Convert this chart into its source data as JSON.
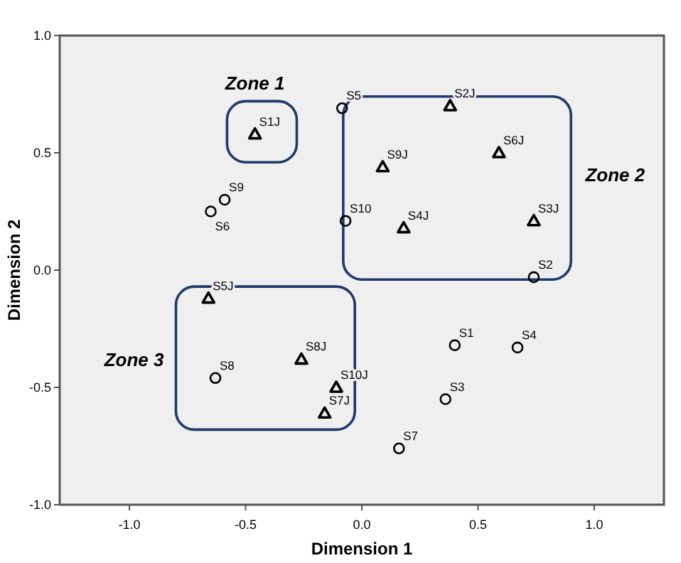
{
  "chart_data": {
    "type": "scatter",
    "xlabel": "Dimension 1",
    "ylabel": "Dimension 2",
    "xlim": [
      -1.3,
      1.3
    ],
    "ylim": [
      -1,
      1
    ],
    "xticks": [
      {
        "value": -1,
        "label": "-1.0"
      },
      {
        "value": -0.5,
        "label": "-0.5"
      },
      {
        "value": 0,
        "label": "0.0"
      },
      {
        "value": 0.5,
        "label": "0.5"
      },
      {
        "value": 1,
        "label": "1.0"
      }
    ],
    "yticks": [
      {
        "value": -1,
        "label": "-1.0"
      },
      {
        "value": -0.5,
        "label": "-0.5"
      },
      {
        "value": 0,
        "label": "0.0"
      },
      {
        "value": 0.5,
        "label": "0.5"
      },
      {
        "value": 1,
        "label": "1.0"
      }
    ],
    "grid": false,
    "series": [
      {
        "color": "#000000",
        "marker": "circle",
        "x": [
          0.4,
          0.74,
          0.36,
          0.67,
          -0.085,
          -0.65,
          0.16,
          -0.63,
          -0.59,
          -0.07
        ],
        "values": [
          -0.32,
          -0.03,
          -0.55,
          -0.33,
          0.69,
          0.25,
          -0.76,
          -0.46,
          0.3,
          0.21
        ]
      },
      {
        "color": "#000000",
        "marker": "triangle",
        "x": [
          -0.46,
          0.38,
          0.74,
          0.18,
          -0.66,
          0.59,
          -0.16,
          -0.26,
          0.09,
          -0.11
        ],
        "values": [
          0.58,
          0.7,
          0.21,
          0.18,
          -0.12,
          0.5,
          -0.61,
          -0.38,
          0.44,
          -0.5
        ]
      }
    ],
    "annotations": [
      {
        "text": "S1",
        "x": 0.4,
        "y": -0.32
      },
      {
        "text": "S2",
        "x": 0.74,
        "y": -0.03
      },
      {
        "text": "S3",
        "x": 0.36,
        "y": -0.55
      },
      {
        "text": "S4",
        "x": 0.67,
        "y": -0.33
      },
      {
        "text": "S5",
        "x": -0.085,
        "y": 0.69
      },
      {
        "text": "S6",
        "x": -0.65,
        "y": 0.25
      },
      {
        "text": "S7",
        "x": 0.16,
        "y": -0.76
      },
      {
        "text": "S8",
        "x": -0.63,
        "y": -0.46
      },
      {
        "text": "S9",
        "x": -0.59,
        "y": 0.3
      },
      {
        "text": "S10",
        "x": -0.07,
        "y": 0.21
      },
      {
        "text": "S1J",
        "x": -0.46,
        "y": 0.58
      },
      {
        "text": "S2J",
        "x": 0.38,
        "y": 0.7
      },
      {
        "text": "S3J",
        "x": 0.74,
        "y": 0.21
      },
      {
        "text": "S4J",
        "x": 0.18,
        "y": 0.18
      },
      {
        "text": "S5J",
        "x": -0.66,
        "y": -0.12
      },
      {
        "text": "S6J",
        "x": 0.59,
        "y": 0.5
      },
      {
        "text": "S7J",
        "x": -0.16,
        "y": -0.61
      },
      {
        "text": "S8J",
        "x": -0.26,
        "y": -0.38
      },
      {
        "text": "S9J",
        "x": 0.09,
        "y": 0.44
      },
      {
        "text": "S10J",
        "x": -0.11,
        "y": -0.5
      },
      "Zone 1",
      "Zone 2",
      "Zone 3"
    ]
  }
}
